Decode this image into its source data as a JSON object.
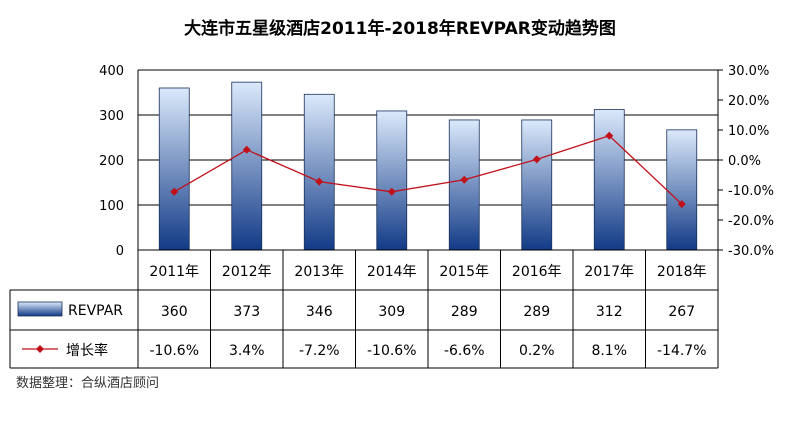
{
  "chart_data": {
    "type": "bar+line",
    "title": "大连市五星级酒店2011年-2018年REVPAR变动趋势图",
    "categories": [
      "2011年",
      "2012年",
      "2013年",
      "2014年",
      "2015年",
      "2016年",
      "2017年",
      "2018年"
    ],
    "series": [
      {
        "name": "REVPAR",
        "type": "bar",
        "axis": "left",
        "values": [
          360,
          373,
          346,
          309,
          289,
          289,
          312,
          267
        ],
        "labels": [
          "360",
          "373",
          "346",
          "309",
          "289",
          "289",
          "312",
          "267"
        ]
      },
      {
        "name": "增长率",
        "type": "line",
        "axis": "right",
        "values": [
          -10.6,
          3.4,
          -7.2,
          -10.6,
          -6.6,
          0.2,
          8.1,
          -14.7
        ],
        "labels": [
          "-10.6%",
          "3.4%",
          "-7.2%",
          "-10.6%",
          "-6.6%",
          "0.2%",
          "8.1%",
          "-14.7%"
        ]
      }
    ],
    "y_left": {
      "range": [
        0,
        400
      ],
      "ticks": [
        "0",
        "100",
        "200",
        "300",
        "400"
      ]
    },
    "y_right": {
      "range": [
        -30,
        30
      ],
      "ticks": [
        "30.0%",
        "20.0%",
        "10.0%",
        "0.0%",
        "-10.0%",
        "-20.0%",
        "-30.0%"
      ]
    },
    "grid": true,
    "legend": "data-table",
    "colors": {
      "bar_top": "#dbe9fb",
      "bar_bottom": "#123a86",
      "line": "#c0111a"
    }
  },
  "source_note": "数据整理：合纵酒店顾问"
}
